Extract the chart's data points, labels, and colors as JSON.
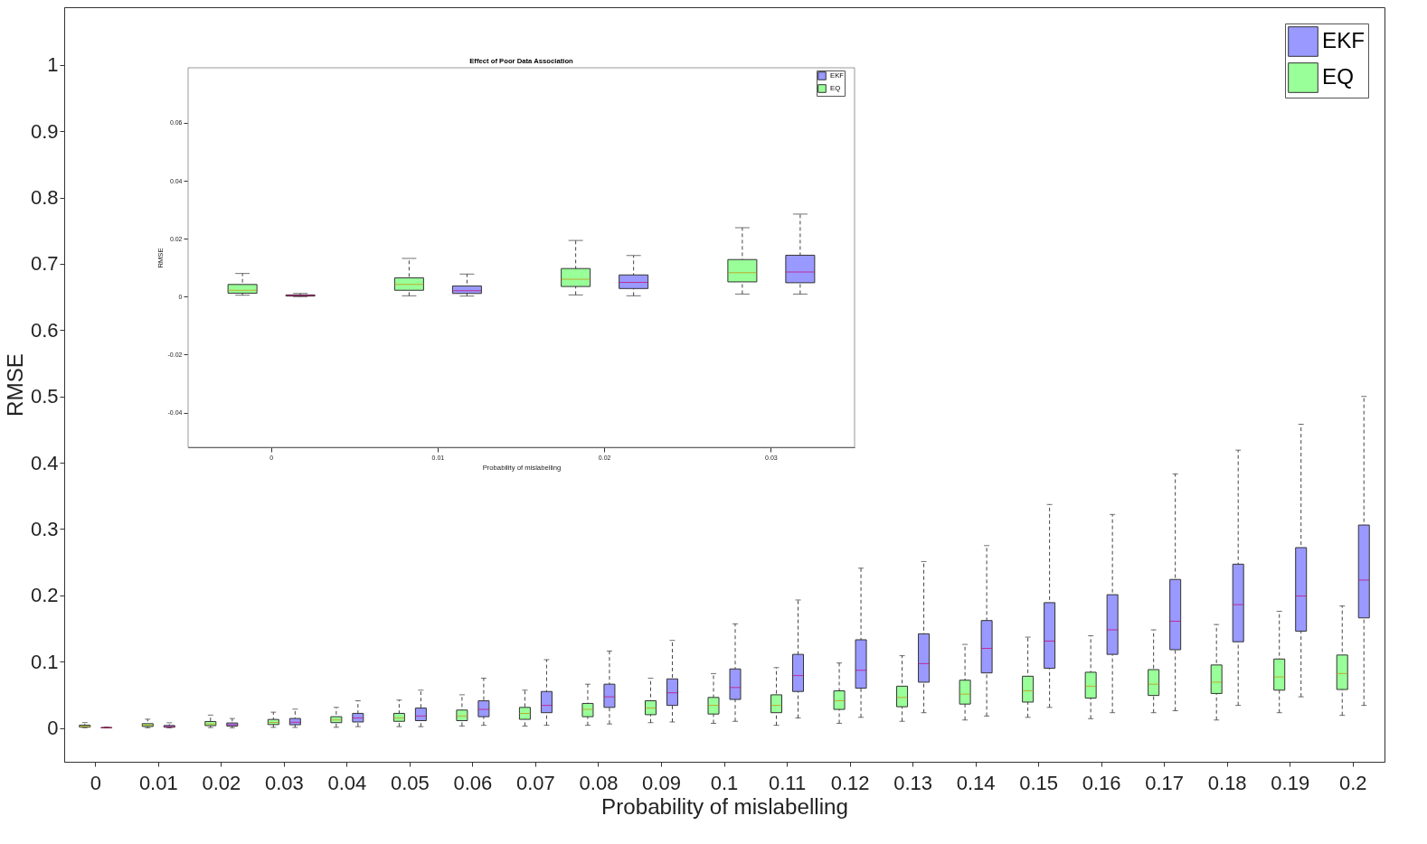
{
  "chart_data": [
    {
      "type": "box",
      "xlabel": "Probability of mislabelling",
      "ylabel": "RMSE",
      "categories": [
        "0",
        "0.01",
        "0.02",
        "0.03",
        "0.04",
        "0.05",
        "0.06",
        "0.07",
        "0.08",
        "0.09",
        "0.1",
        "0.11",
        "0.12",
        "0.13",
        "0.14",
        "0.15",
        "0.16",
        "0.17",
        "0.18",
        "0.19",
        "0.2"
      ],
      "ylim": [
        -0.051,
        1.087
      ],
      "yticks": [
        0,
        0.1,
        0.2,
        0.3,
        0.4,
        0.5,
        0.6,
        0.7,
        0.8,
        0.9,
        1
      ],
      "grid": false,
      "legend": "top right",
      "series": [
        {
          "name": "EKF",
          "color": "#9999ff",
          "boxes": [
            {
              "low": 0,
              "q1": 0.0002,
              "median": 0.0004,
              "q3": 0.0006,
              "high": 0.0011
            },
            {
              "low": 0.0002,
              "q1": 0.0011,
              "median": 0.002,
              "q3": 0.0037,
              "high": 0.0078
            },
            {
              "low": 0.0003,
              "q1": 0.0028,
              "median": 0.0049,
              "q3": 0.0075,
              "high": 0.0142
            },
            {
              "low": 0.0009,
              "q1": 0.0048,
              "median": 0.0085,
              "q3": 0.0143,
              "high": 0.0285
            },
            {
              "low": 0.002,
              "q1": 0.009,
              "median": 0.015,
              "q3": 0.022,
              "high": 0.041
            },
            {
              "low": 0.002,
              "q1": 0.011,
              "median": 0.018,
              "q3": 0.03,
              "high": 0.057
            },
            {
              "low": 0.004,
              "q1": 0.017,
              "median": 0.028,
              "q3": 0.041,
              "high": 0.075
            },
            {
              "low": 0.004,
              "q1": 0.023,
              "median": 0.034,
              "q3": 0.055,
              "high": 0.103
            },
            {
              "low": 0.006,
              "q1": 0.031,
              "median": 0.047,
              "q3": 0.066,
              "high": 0.116
            },
            {
              "low": 0.009,
              "q1": 0.034,
              "median": 0.053,
              "q3": 0.074,
              "high": 0.132
            },
            {
              "low": 0.01,
              "q1": 0.043,
              "median": 0.061,
              "q3": 0.089,
              "high": 0.157
            },
            {
              "low": 0.015,
              "q1": 0.055,
              "median": 0.079,
              "q3": 0.111,
              "high": 0.193
            },
            {
              "low": 0.016,
              "q1": 0.06,
              "median": 0.087,
              "q3": 0.133,
              "high": 0.241
            },
            {
              "low": 0.023,
              "q1": 0.069,
              "median": 0.097,
              "q3": 0.142,
              "high": 0.251
            },
            {
              "low": 0.018,
              "q1": 0.083,
              "median": 0.12,
              "q3": 0.162,
              "high": 0.275
            },
            {
              "low": 0.031,
              "q1": 0.09,
              "median": 0.131,
              "q3": 0.189,
              "high": 0.337
            },
            {
              "low": 0.023,
              "q1": 0.111,
              "median": 0.148,
              "q3": 0.201,
              "high": 0.322
            },
            {
              "low": 0.026,
              "q1": 0.118,
              "median": 0.161,
              "q3": 0.224,
              "high": 0.383
            },
            {
              "low": 0.034,
              "q1": 0.13,
              "median": 0.186,
              "q3": 0.247,
              "high": 0.419
            },
            {
              "low": 0.047,
              "q1": 0.146,
              "median": 0.199,
              "q3": 0.272,
              "high": 0.458
            },
            {
              "low": 0.034,
              "q1": 0.166,
              "median": 0.223,
              "q3": 0.306,
              "high": 0.5
            }
          ]
        },
        {
          "name": "EQ",
          "color": "#99ff99",
          "boxes": [
            {
              "low": 0.0005,
              "q1": 0.0012,
              "median": 0.0022,
              "q3": 0.0042,
              "high": 0.008
            },
            {
              "low": 0.0003,
              "q1": 0.0022,
              "median": 0.0042,
              "q3": 0.0065,
              "high": 0.0132
            },
            {
              "low": 0.0006,
              "q1": 0.0035,
              "median": 0.006,
              "q3": 0.0097,
              "high": 0.0194
            },
            {
              "low": 0.0009,
              "q1": 0.0051,
              "median": 0.0083,
              "q3": 0.0128,
              "high": 0.0238
            },
            {
              "low": 0.001,
              "q1": 0.008,
              "median": 0.012,
              "q3": 0.017,
              "high": 0.031
            },
            {
              "low": 0.002,
              "q1": 0.01,
              "median": 0.015,
              "q3": 0.022,
              "high": 0.042
            },
            {
              "low": 0.003,
              "q1": 0.011,
              "median": 0.018,
              "q3": 0.027,
              "high": 0.05
            },
            {
              "low": 0.003,
              "q1": 0.013,
              "median": 0.022,
              "q3": 0.031,
              "high": 0.057
            },
            {
              "low": 0.004,
              "q1": 0.017,
              "median": 0.028,
              "q3": 0.037,
              "high": 0.066
            },
            {
              "low": 0.008,
              "q1": 0.02,
              "median": 0.03,
              "q3": 0.041,
              "high": 0.075
            },
            {
              "low": 0.007,
              "q1": 0.021,
              "median": 0.034,
              "q3": 0.046,
              "high": 0.082
            },
            {
              "low": 0.004,
              "q1": 0.023,
              "median": 0.034,
              "q3": 0.05,
              "high": 0.091
            },
            {
              "low": 0.007,
              "q1": 0.028,
              "median": 0.041,
              "q3": 0.056,
              "high": 0.098
            },
            {
              "low": 0.01,
              "q1": 0.032,
              "median": 0.046,
              "q3": 0.063,
              "high": 0.109
            },
            {
              "low": 0.012,
              "q1": 0.036,
              "median": 0.051,
              "q3": 0.072,
              "high": 0.126
            },
            {
              "low": 0.016,
              "q1": 0.039,
              "median": 0.056,
              "q3": 0.078,
              "high": 0.137
            },
            {
              "low": 0.014,
              "q1": 0.045,
              "median": 0.063,
              "q3": 0.084,
              "high": 0.139
            },
            {
              "low": 0.023,
              "q1": 0.049,
              "median": 0.066,
              "q3": 0.088,
              "high": 0.148
            },
            {
              "low": 0.012,
              "q1": 0.052,
              "median": 0.069,
              "q3": 0.095,
              "high": 0.156
            },
            {
              "low": 0.023,
              "q1": 0.057,
              "median": 0.077,
              "q3": 0.104,
              "high": 0.176
            },
            {
              "low": 0.019,
              "q1": 0.058,
              "median": 0.082,
              "q3": 0.11,
              "high": 0.184
            }
          ]
        }
      ]
    },
    {
      "type": "box",
      "title": "Effect of Poor Data Association",
      "xlabel": "Probability of mislabelling",
      "ylabel": "RMSE",
      "categories": [
        "0",
        "0.01",
        "0.02",
        "0.03"
      ],
      "ylim": [
        -0.052,
        0.079
      ],
      "yticks": [
        -0.04,
        -0.02,
        0,
        0.02,
        0.04,
        0.06
      ],
      "grid": false,
      "legend": "top right",
      "series": [
        {
          "name": "EKF",
          "color": "#9999ff",
          "boxes": [
            {
              "low": 0,
              "q1": 0.0002,
              "median": 0.0004,
              "q3": 0.0006,
              "high": 0.0011
            },
            {
              "low": 0.0002,
              "q1": 0.0011,
              "median": 0.002,
              "q3": 0.0037,
              "high": 0.0078
            },
            {
              "low": 0.0003,
              "q1": 0.0028,
              "median": 0.0049,
              "q3": 0.0075,
              "high": 0.0142
            },
            {
              "low": 0.0009,
              "q1": 0.0048,
              "median": 0.0085,
              "q3": 0.0143,
              "high": 0.0285
            }
          ]
        },
        {
          "name": "EQ",
          "color": "#99ff99",
          "boxes": [
            {
              "low": 0.0005,
              "q1": 0.0012,
              "median": 0.0022,
              "q3": 0.0042,
              "high": 0.008
            },
            {
              "low": 0.0003,
              "q1": 0.0022,
              "median": 0.0042,
              "q3": 0.0065,
              "high": 0.0132
            },
            {
              "low": 0.0006,
              "q1": 0.0035,
              "median": 0.006,
              "q3": 0.0097,
              "high": 0.0194
            },
            {
              "low": 0.0009,
              "q1": 0.0051,
              "median": 0.0083,
              "q3": 0.0128,
              "high": 0.0238
            }
          ]
        }
      ]
    }
  ]
}
